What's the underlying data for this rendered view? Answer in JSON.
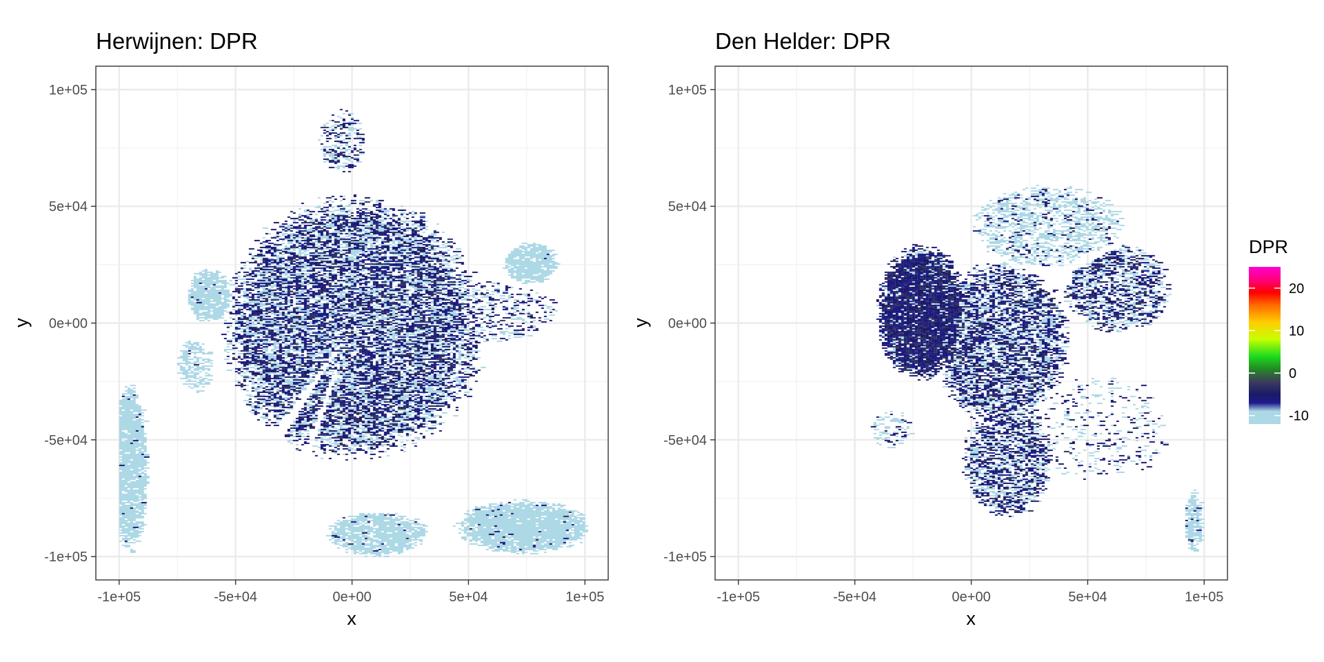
{
  "chart_data": {
    "type": "heatmap",
    "legend": {
      "title": "DPR",
      "placement": "right",
      "range": [
        -12,
        25
      ],
      "breaks": [
        -10,
        0,
        10,
        20
      ],
      "break_labels": [
        "-10",
        "0",
        "10",
        "20"
      ],
      "colors": [
        {
          "value": -12,
          "color": "#add8e6"
        },
        {
          "value": -9,
          "color": "#add8e6"
        },
        {
          "value": -7,
          "color": "#1e1a8c"
        },
        {
          "value": -5,
          "color": "#1a1a66"
        },
        {
          "value": -2,
          "color": "#3c3c5c"
        },
        {
          "value": 1,
          "color": "#228b22"
        },
        {
          "value": 4,
          "color": "#1edc1e"
        },
        {
          "value": 8,
          "color": "#c8ff00"
        },
        {
          "value": 12,
          "color": "#ffcc00"
        },
        {
          "value": 16,
          "color": "#ff6a00"
        },
        {
          "value": 19,
          "color": "#ff0000"
        },
        {
          "value": 22,
          "color": "#ff0080"
        },
        {
          "value": 25,
          "color": "#ff00cc"
        }
      ]
    },
    "panels": [
      {
        "title": "Herwijnen: DPR",
        "xlabel": "x",
        "ylabel": "y",
        "xlim": [
          -110000,
          110000
        ],
        "ylim": [
          -110000,
          110000
        ],
        "xticks": [
          -100000,
          -50000,
          0,
          50000,
          100000
        ],
        "xtick_labels": [
          "-1e+05",
          "-5e+04",
          "0e+00",
          "5e+04",
          "1e+05"
        ],
        "yticks": [
          -100000,
          -50000,
          0,
          50000,
          100000
        ],
        "ytick_labels": [
          "-1e+05",
          "-5e+04",
          "0e+00",
          "5e+04",
          "1e+05"
        ],
        "grid": true,
        "blobs": [
          {
            "cx": 0,
            "cy": -2000,
            "rx": 58000,
            "ry": 58000,
            "value": -8,
            "density": 0.72,
            "mix": 0.45
          },
          {
            "cx": -5000,
            "cy": 78000,
            "rx": 10000,
            "ry": 14000,
            "value": -8,
            "density": 0.4,
            "mix": 0.5
          },
          {
            "cx": 50000,
            "cy": 5000,
            "rx": 40000,
            "ry": 14000,
            "value": -8,
            "density": 0.28,
            "mix": 0.5
          },
          {
            "cx": -62000,
            "cy": 12000,
            "rx": 10000,
            "ry": 12000,
            "value": -11,
            "density": 0.88,
            "mix": 0.02
          },
          {
            "cx": 76000,
            "cy": 26000,
            "rx": 12000,
            "ry": 9000,
            "value": -11,
            "density": 0.85,
            "mix": 0.02
          },
          {
            "cx": -96000,
            "cy": -62000,
            "rx": 8000,
            "ry": 38000,
            "value": -11,
            "density": 0.9,
            "mix": 0.02
          },
          {
            "cx": 10000,
            "cy": -90000,
            "rx": 22000,
            "ry": 10000,
            "value": -11,
            "density": 0.8,
            "mix": 0.03
          },
          {
            "cx": 73000,
            "cy": -87000,
            "rx": 30000,
            "ry": 12000,
            "value": -11,
            "density": 0.88,
            "mix": 0.02
          },
          {
            "cx": -68000,
            "cy": -18000,
            "rx": 8000,
            "ry": 12000,
            "value": -11,
            "density": 0.45,
            "mix": 0.05
          }
        ],
        "wedges": [
          {
            "angle_deg": 236,
            "half_width_deg": 2.5
          },
          {
            "angle_deg": 250,
            "half_width_deg": 1.8
          }
        ]
      },
      {
        "title": "Den Helder: DPR",
        "xlabel": "x",
        "ylabel": "y",
        "xlim": [
          -110000,
          110000
        ],
        "ylim": [
          -110000,
          110000
        ],
        "xticks": [
          -100000,
          -50000,
          0,
          50000,
          100000
        ],
        "xtick_labels": [
          "-1e+05",
          "-5e+04",
          "0e+00",
          "5e+04",
          "1e+05"
        ],
        "yticks": [
          -100000,
          -50000,
          0,
          50000,
          100000
        ],
        "ytick_labels": [
          "-1e+05",
          "-5e+04",
          "0e+00",
          "5e+04",
          "1e+05"
        ],
        "grid": true,
        "blobs": [
          {
            "cx": -22000,
            "cy": 5000,
            "rx": 20000,
            "ry": 30000,
            "value": -6,
            "density": 0.95,
            "mix": 0.12
          },
          {
            "cx": 12000,
            "cy": -8000,
            "rx": 30000,
            "ry": 36000,
            "value": -8,
            "density": 0.7,
            "mix": 0.4
          },
          {
            "cx": 15000,
            "cy": -58000,
            "rx": 20000,
            "ry": 26000,
            "value": -8,
            "density": 0.6,
            "mix": 0.45
          },
          {
            "cx": 62000,
            "cy": 15000,
            "rx": 24000,
            "ry": 20000,
            "value": -8,
            "density": 0.55,
            "mix": 0.45
          },
          {
            "cx": 32000,
            "cy": 42000,
            "rx": 34000,
            "ry": 18000,
            "value": -11,
            "density": 0.45,
            "mix": 0.15
          },
          {
            "cx": -35000,
            "cy": -45000,
            "rx": 9000,
            "ry": 9000,
            "value": -11,
            "density": 0.3,
            "mix": 0.3
          },
          {
            "cx": 95000,
            "cy": -85000,
            "rx": 4000,
            "ry": 14000,
            "value": -11,
            "density": 0.8,
            "mix": 0.05
          },
          {
            "cx": 55000,
            "cy": -45000,
            "rx": 30000,
            "ry": 25000,
            "value": -8,
            "density": 0.12,
            "mix": 0.5
          }
        ],
        "wedges": [
          {
            "angle_deg": 29,
            "half_width_deg": 1.2
          }
        ]
      }
    ]
  }
}
